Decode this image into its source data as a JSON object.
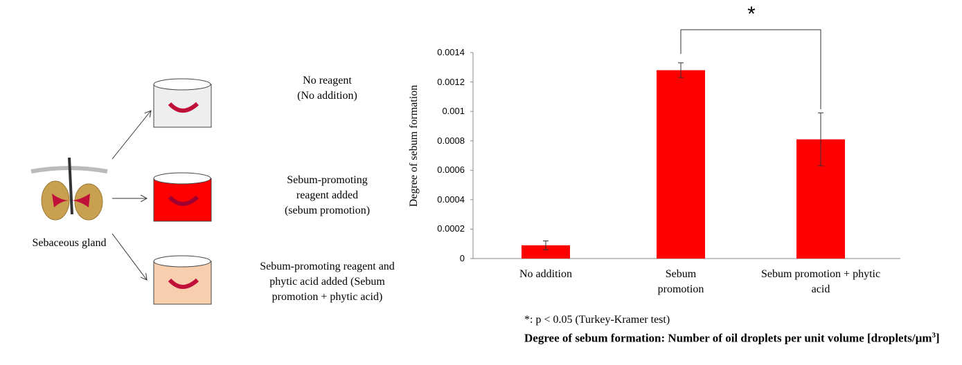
{
  "diagram": {
    "source_label": "Sebaceous gland",
    "conditions": [
      {
        "lines": [
          "No reagent",
          "(No addition)"
        ]
      },
      {
        "lines": [
          "Sebum-promoting",
          "reagent added",
          "(sebum promotion)"
        ]
      },
      {
        "lines": [
          "Sebum-promoting reagent and",
          "phytic acid added (Sebum",
          "promotion + phytic acid)"
        ]
      }
    ]
  },
  "chart_data": {
    "type": "bar",
    "y_label": "Degree of sebum formation",
    "categories": [
      "No addition",
      "Sebum promotion",
      "Sebum promotion + phytic acid"
    ],
    "values": [
      9e-05,
      0.00128,
      0.00081
    ],
    "errors": [
      3e-05,
      5e-05,
      0.00018
    ],
    "color": "#ff0000",
    "ylim": [
      0,
      0.0014
    ],
    "yticks": [
      0,
      0.0002,
      0.0004,
      0.0006,
      0.0008,
      0.001,
      0.0012,
      0.0014
    ],
    "annotation": "*"
  },
  "notes": {
    "significance": "*: p < 0.05 (Turkey-Kramer test)",
    "definition": [
      "Degree of sebum formation: Number of oil droplets per unit volume [droplets/µm",
      "3",
      "]"
    ]
  }
}
